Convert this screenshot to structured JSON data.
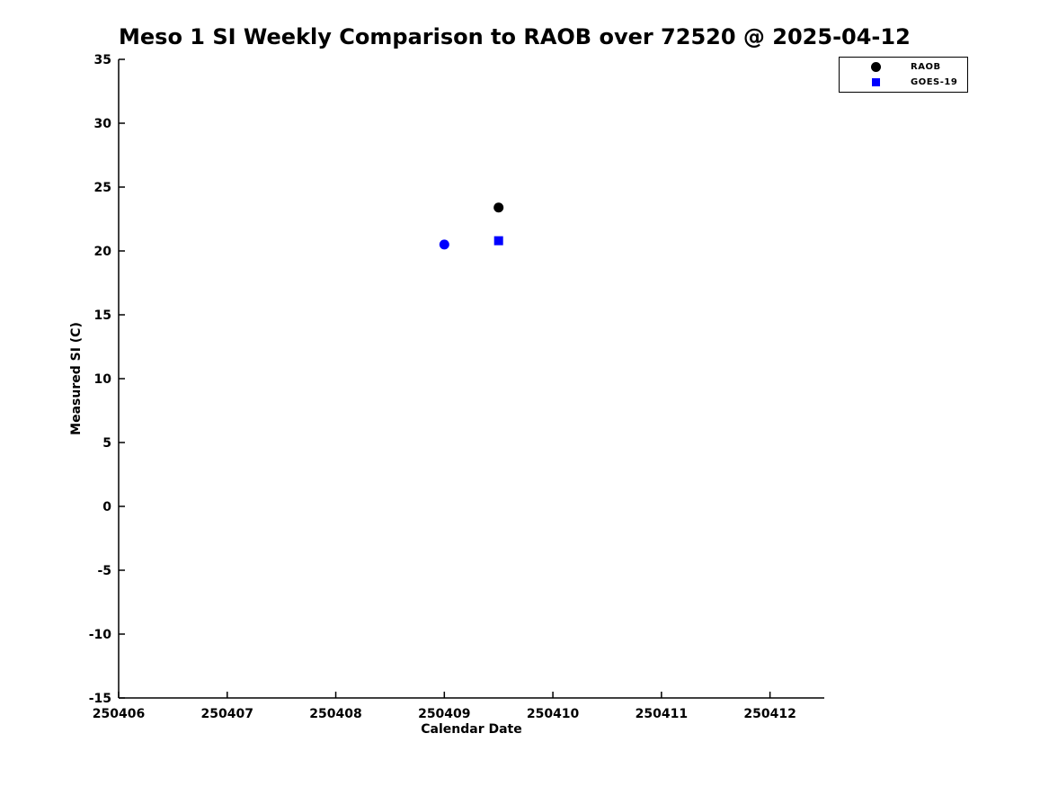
{
  "figure": {
    "background": "#ffffff",
    "text_color": "#000000",
    "axis_color": "#000000"
  },
  "chart_data": {
    "type": "scatter",
    "title": "Meso 1 SI Weekly Comparison to RAOB over 72520 @ 2025-04-12",
    "xlabel": "Calendar Date",
    "ylabel": "Measured SI (C)",
    "xlim": [
      250406,
      250412.5
    ],
    "ylim": [
      -15,
      35
    ],
    "grid": false,
    "x_ticks": {
      "values": [
        250406,
        250407,
        250408,
        250409,
        250410,
        250411,
        250412
      ],
      "labels": [
        "250406",
        "250407",
        "250408",
        "250409",
        "250410",
        "250411",
        "250412"
      ]
    },
    "y_ticks": {
      "values": [
        35,
        30,
        25,
        20,
        15,
        10,
        5,
        0,
        -5,
        -10,
        -15
      ],
      "labels": [
        "35",
        "30",
        "25",
        "20",
        "15",
        "10",
        "5",
        "0",
        "-5",
        "-10",
        "-15"
      ]
    },
    "legend": {
      "position": "top-right",
      "items": [
        {
          "label": "RAOB",
          "marker": "circle",
          "color": "#000000"
        },
        {
          "label": "GOES-19",
          "marker": "square",
          "color": "#0000ff"
        }
      ]
    },
    "points": [
      {
        "series": "GOES-19",
        "marker": "circle",
        "color": "#0000ff",
        "x": 250409.0,
        "y": 20.5
      },
      {
        "series": "RAOB",
        "marker": "circle",
        "color": "#000000",
        "x": 250409.5,
        "y": 23.4
      },
      {
        "series": "GOES-19",
        "marker": "square",
        "color": "#0000ff",
        "x": 250409.5,
        "y": 20.8
      }
    ]
  }
}
